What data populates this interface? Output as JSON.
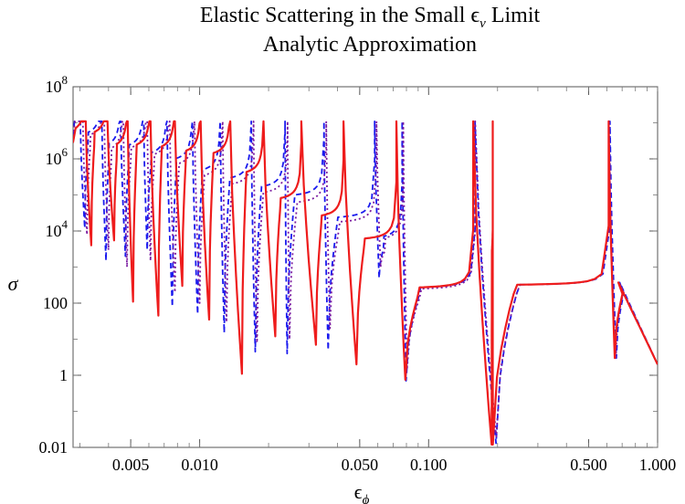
{
  "chart_data": {
    "type": "line",
    "title": "Elastic Scattering in the Small ϵ",
    "title_subscript": "ν",
    "title_suffix": " Limit",
    "subtitle": "Analytic Approximation",
    "xlabel": "ϵ",
    "xlabel_subscript": "ϕ",
    "ylabel": "σ",
    "xscale": "log",
    "yscale": "log",
    "xlim": [
      0.0028,
      1.0
    ],
    "ylim": [
      0.01,
      100000000
    ],
    "x_ticks": [
      {
        "value": 0.005,
        "label": "0.005"
      },
      {
        "value": 0.01,
        "label": "0.010"
      },
      {
        "value": 0.05,
        "label": "0.050"
      },
      {
        "value": 0.1,
        "label": "0.100"
      },
      {
        "value": 0.5,
        "label": "0.500"
      },
      {
        "value": 1.0,
        "label": "1.000"
      }
    ],
    "y_ticks": [
      {
        "value": 0.01,
        "label": "0.01",
        "exp": ""
      },
      {
        "value": 1,
        "label": "1",
        "exp": ""
      },
      {
        "value": 100,
        "label": "100",
        "exp": ""
      },
      {
        "value": 10000,
        "label": "10",
        "exp": "4"
      },
      {
        "value": 1000000,
        "label": "10",
        "exp": "6"
      },
      {
        "value": 100000000,
        "label": "10",
        "exp": "8"
      }
    ],
    "series": [
      {
        "name": "red solid",
        "color": "#ee1c1c",
        "style": "solid",
        "resonances": [
          0.00318,
          0.00396,
          0.00485,
          0.0061,
          0.0078,
          0.0101,
          0.0136,
          0.019,
          0.0278,
          0.0425,
          0.0723,
          0.1565,
          0.1905,
          0.6113
        ],
        "dips": [
          0.00336,
          0.00423,
          0.00512,
          0.0066,
          0.0084,
          0.011,
          0.0153,
          0.0214,
          0.0322,
          0.0484,
          0.0791,
          0.1885,
          0.1907,
          0.65
        ],
        "dip_values": [
          4000,
          5500,
          110,
          45,
          300,
          35,
          1.1,
          12,
          7,
          2,
          0.75,
          0.012,
          0.012,
          3
        ],
        "plateaus": [
          4000000,
          3500000,
          1500000,
          1600000,
          1400000,
          1100000,
          1000000,
          300000,
          60000,
          20000,
          5000,
          240,
          240,
          300
        ]
      },
      {
        "name": "blue dashed",
        "color": "#1a1aee",
        "style": "dashed",
        "resonances": [
          0.00301,
          0.00374,
          0.00452,
          0.0057,
          0.0072,
          0.0093,
          0.0123,
          0.0168,
          0.0236,
          0.0349,
          0.0581,
          0.0766,
          0.1594,
          0.6191
        ],
        "dips": [
          0.00315,
          0.0039,
          0.00474,
          0.0059,
          0.0076,
          0.0098,
          0.0128,
          0.0175,
          0.0241,
          0.0364,
          0.0608,
          0.0797,
          0.197,
          0.66
        ],
        "dip_values": [
          12000,
          1500,
          2000,
          3000,
          80,
          50,
          15,
          4.5,
          4,
          5,
          500,
          0.7,
          0.013,
          3
        ],
        "plateaus": [
          6500000,
          3500000,
          1600000,
          1600000,
          1000000,
          700000,
          350000,
          220000,
          130000,
          80000,
          20000,
          5000,
          240,
          300
        ]
      },
      {
        "name": "purple dotted",
        "color": "#7a1aa0",
        "style": "dotted",
        "resonances": [
          0.00309,
          0.00383,
          0.00464,
          0.0059,
          0.0074,
          0.0095,
          0.0126,
          0.0172,
          0.0242,
          0.0357,
          0.0592,
          0.0775,
          0.1598,
          0.612
        ],
        "dips": [
          0.00322,
          0.004,
          0.00482,
          0.0061,
          0.0078,
          0.01,
          0.0131,
          0.0178,
          0.0247,
          0.0371,
          0.0617,
          0.0805,
          0.1975,
          0.655
        ],
        "dip_values": [
          8000,
          3000,
          1000,
          1500,
          200,
          100,
          30,
          8,
          10,
          20,
          1000,
          1.5,
          0.02,
          3
        ],
        "plateaus": [
          6000000,
          3000000,
          1200000,
          1400000,
          900000,
          500000,
          250000,
          150000,
          90000,
          50000,
          15000,
          4500,
          220,
          300
        ]
      }
    ]
  }
}
